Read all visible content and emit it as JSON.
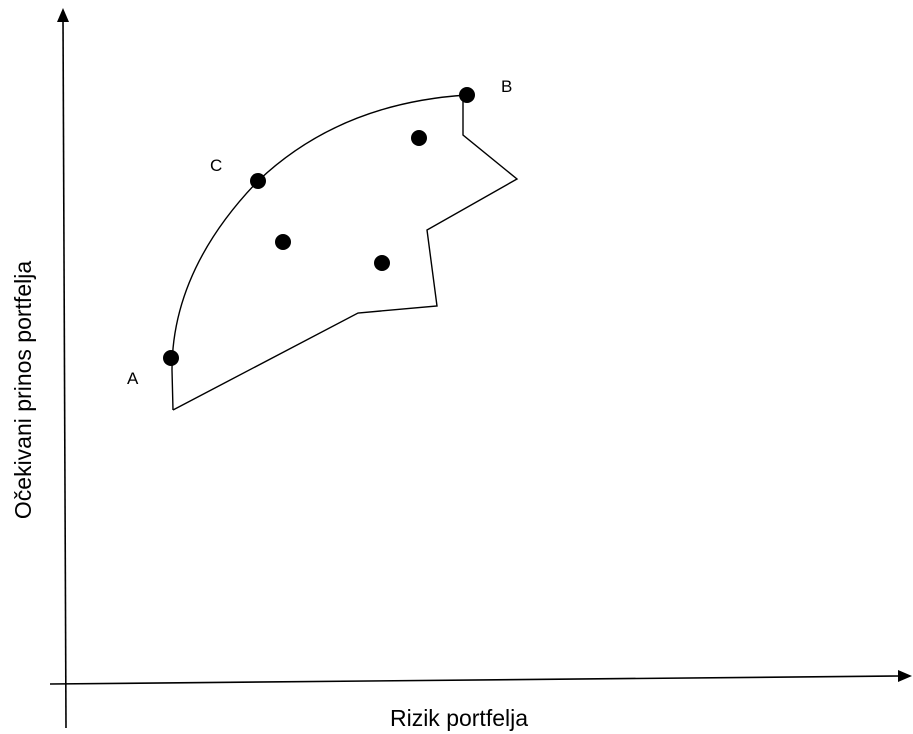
{
  "axes": {
    "x_label": "Rizik portfelja",
    "y_label": "Očekivani prinos portfelja"
  },
  "points": {
    "labeled": [
      {
        "id": "A",
        "label": "A"
      },
      {
        "id": "B",
        "label": "B"
      },
      {
        "id": "C",
        "label": "C"
      }
    ],
    "unlabeled_count": 3
  },
  "colors": {
    "ink": "#000000",
    "background": "#ffffff"
  }
}
